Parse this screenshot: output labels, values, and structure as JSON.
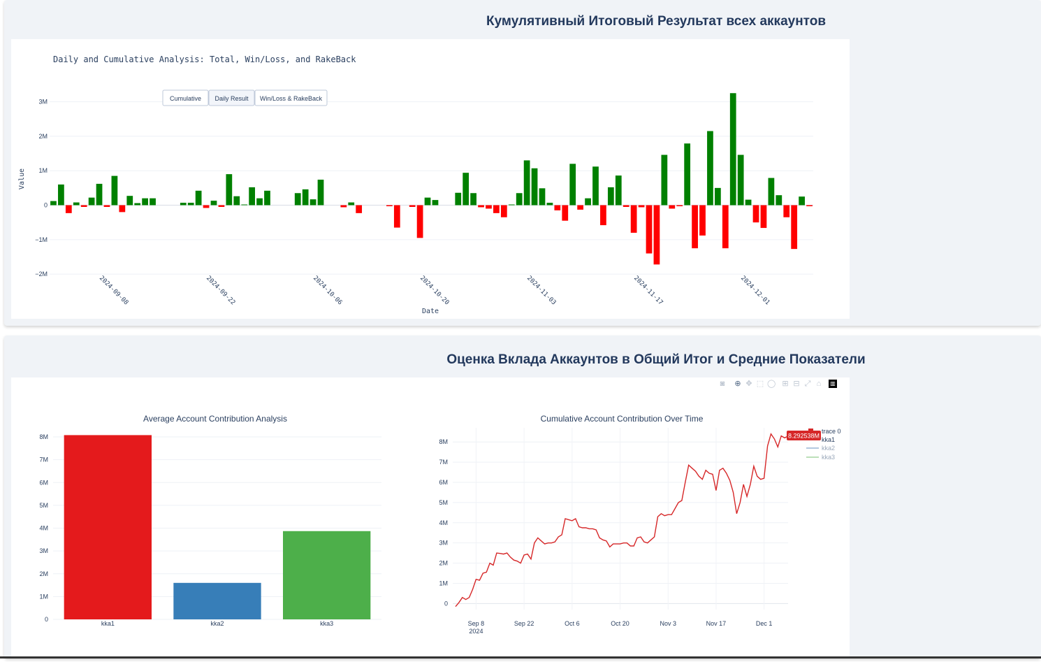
{
  "section1": {
    "title": "Кумулятивный Итоговый Результат всех аккаунтов"
  },
  "section2": {
    "title": "Оценка Вклада Аккаунтов в Общий Итог и Средние Показатели"
  },
  "colors": {
    "positive": "#008000",
    "negative": "#ff0000",
    "kka1": "#e41a1c",
    "kka2": "#377eb8",
    "kka3": "#4daf4a",
    "line": "#d62728"
  },
  "modebar": {
    "icons": [
      "camera-icon",
      "zoom-icon",
      "pan-icon",
      "box-select-icon",
      "lasso-icon",
      "zoom-in-icon",
      "zoom-out-icon",
      "autoscale-icon",
      "reset-axes-icon",
      "plotly-logo-icon"
    ]
  },
  "chart_data": [
    {
      "type": "bar",
      "title": "Daily and Cumulative Analysis: Total, Win/Loss, and RakeBack",
      "xlabel": "Date",
      "ylabel": "Value",
      "buttons": [
        "Cumulative",
        "Daily Result",
        "Win/Loss & RakeBack"
      ],
      "active_button": "Daily Result",
      "ylim": [
        -2200000,
        3600000
      ],
      "yticks": [
        -2000000,
        -1000000,
        0,
        1000000,
        2000000,
        3000000
      ],
      "ytick_labels": [
        "−2M",
        "−1M",
        "0",
        "1M",
        "2M",
        "3M"
      ],
      "xticks": [
        "2024-09-08",
        "2024-09-22",
        "2024-10-06",
        "2024-10-20",
        "2024-11-03",
        "2024-11-17",
        "2024-12-01"
      ],
      "start_date": "2024-09-02",
      "values": [
        120000,
        600000,
        -230000,
        80000,
        -50000,
        220000,
        620000,
        -50000,
        850000,
        -200000,
        270000,
        60000,
        200000,
        200000,
        0,
        0,
        0,
        70000,
        70000,
        420000,
        -80000,
        130000,
        -50000,
        900000,
        260000,
        20000,
        520000,
        200000,
        420000,
        0,
        0,
        0,
        350000,
        460000,
        170000,
        740000,
        0,
        0,
        -60000,
        80000,
        -230000,
        0,
        0,
        0,
        -30000,
        -650000,
        0,
        -50000,
        -950000,
        220000,
        150000,
        0,
        0,
        360000,
        940000,
        350000,
        -60000,
        -100000,
        -230000,
        -350000,
        20000,
        350000,
        1300000,
        1070000,
        490000,
        70000,
        -150000,
        -450000,
        1200000,
        -130000,
        200000,
        1120000,
        -580000,
        520000,
        860000,
        -50000,
        -800000,
        -60000,
        -1400000,
        -1720000,
        1460000,
        -100000,
        -30000,
        1790000,
        -1250000,
        -880000,
        2150000,
        500000,
        -1250000,
        3250000,
        1460000,
        160000,
        -500000,
        -660000,
        790000,
        290000,
        -350000,
        -1270000,
        250000,
        -30000
      ]
    },
    {
      "type": "bar",
      "title": "Average Account Contribution Analysis",
      "categories": [
        "kka1",
        "kka2",
        "kka3"
      ],
      "values": [
        8080000,
        1600000,
        3870000
      ],
      "ylim": [
        0,
        8400000
      ],
      "yticks": [
        0,
        1000000,
        2000000,
        3000000,
        4000000,
        5000000,
        6000000,
        7000000,
        8000000
      ],
      "ytick_labels": [
        "0",
        "1M",
        "2M",
        "3M",
        "4M",
        "5M",
        "6M",
        "7M",
        "8M"
      ]
    },
    {
      "type": "line",
      "title": "Cumulative Account Contribution Over Time",
      "ylim": [
        -300000,
        8700000
      ],
      "yticks": [
        0,
        1000000,
        2000000,
        3000000,
        4000000,
        5000000,
        6000000,
        7000000,
        8000000
      ],
      "ytick_labels": [
        "0",
        "1M",
        "2M",
        "3M",
        "4M",
        "5M",
        "6M",
        "7M",
        "8M"
      ],
      "xticks": [
        "Sep 8",
        "Sep 22",
        "Oct 6",
        "Oct 20",
        "Nov 3",
        "Nov 17",
        "Dec 1"
      ],
      "xtick_sublabel": "2024",
      "start_date": "2024-09-02",
      "values": [
        -150000,
        50000,
        300000,
        200000,
        300000,
        700000,
        1200000,
        1150000,
        1500000,
        1550000,
        2000000,
        1900000,
        2500000,
        2480000,
        2450000,
        2500000,
        2300000,
        2150000,
        2100000,
        2000000,
        2400000,
        2450000,
        2200000,
        3000000,
        3250000,
        3100000,
        2950000,
        3000000,
        3000000,
        3050000,
        3300000,
        3400000,
        4200000,
        4150000,
        4100000,
        4200000,
        3800000,
        3750000,
        3750000,
        3700000,
        3700000,
        3650000,
        3250000,
        3150000,
        3100000,
        2800000,
        2950000,
        2950000,
        2950000,
        3000000,
        3000000,
        2850000,
        2850000,
        3250000,
        3300000,
        3050000,
        3000000,
        3150000,
        3300000,
        4300000,
        4450000,
        4350000,
        4400000,
        4400000,
        4700000,
        5000000,
        5100000,
        6000000,
        6850000,
        6700000,
        6550000,
        6300000,
        6150000,
        6600000,
        6450000,
        6400000,
        5600000,
        6600000,
        6700000,
        6450000,
        6100000,
        5500000,
        4450000,
        5000000,
        5900000,
        5300000,
        5900000,
        6800000,
        6300000,
        6150000,
        6200000,
        7800000,
        8400000,
        8150000,
        7750000,
        8300000,
        8200000,
        8292538
      ],
      "hover_label": "8.292538M",
      "legend": [
        "trace 0",
        "kka1",
        "kka2",
        "kka3"
      ]
    }
  ]
}
